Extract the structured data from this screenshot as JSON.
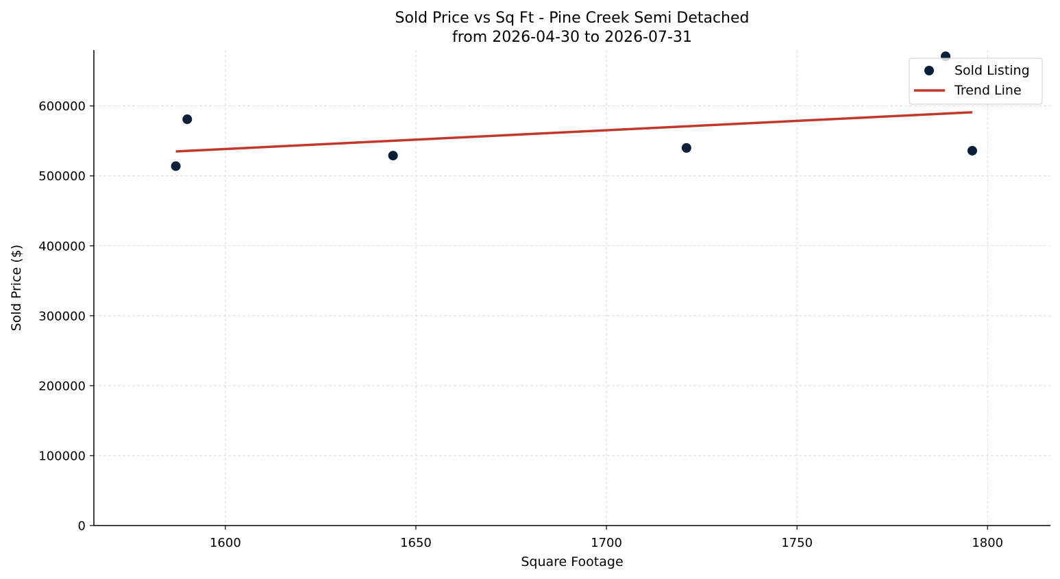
{
  "chart_data": {
    "type": "scatter",
    "title": "Sold Price vs Sq Ft - Pine Creek Semi Detached",
    "subtitle": "from 2026-04-30 to 2026-07-31",
    "xlabel": "Square Footage",
    "ylabel": "Sold Price ($)",
    "xlim": [
      1565.5,
      1816.5
    ],
    "ylim": [
      0,
      680000
    ],
    "xticks": [
      1600,
      1650,
      1700,
      1750,
      1800
    ],
    "yticks": [
      0,
      100000,
      200000,
      300000,
      400000,
      500000,
      600000
    ],
    "grid": true,
    "legend_position": "top-right",
    "series": [
      {
        "name": "Sold Listing",
        "kind": "scatter",
        "color": "#0a1f3a",
        "points": [
          {
            "x": 1587,
            "y": 514000
          },
          {
            "x": 1590,
            "y": 581000
          },
          {
            "x": 1644,
            "y": 529000
          },
          {
            "x": 1721,
            "y": 540000
          },
          {
            "x": 1789,
            "y": 671000
          },
          {
            "x": 1796,
            "y": 536000
          }
        ]
      },
      {
        "name": "Trend Line",
        "kind": "line",
        "color": "#c0392b",
        "points": [
          {
            "x": 1587,
            "y": 535000
          },
          {
            "x": 1796,
            "y": 591000
          }
        ]
      }
    ]
  }
}
